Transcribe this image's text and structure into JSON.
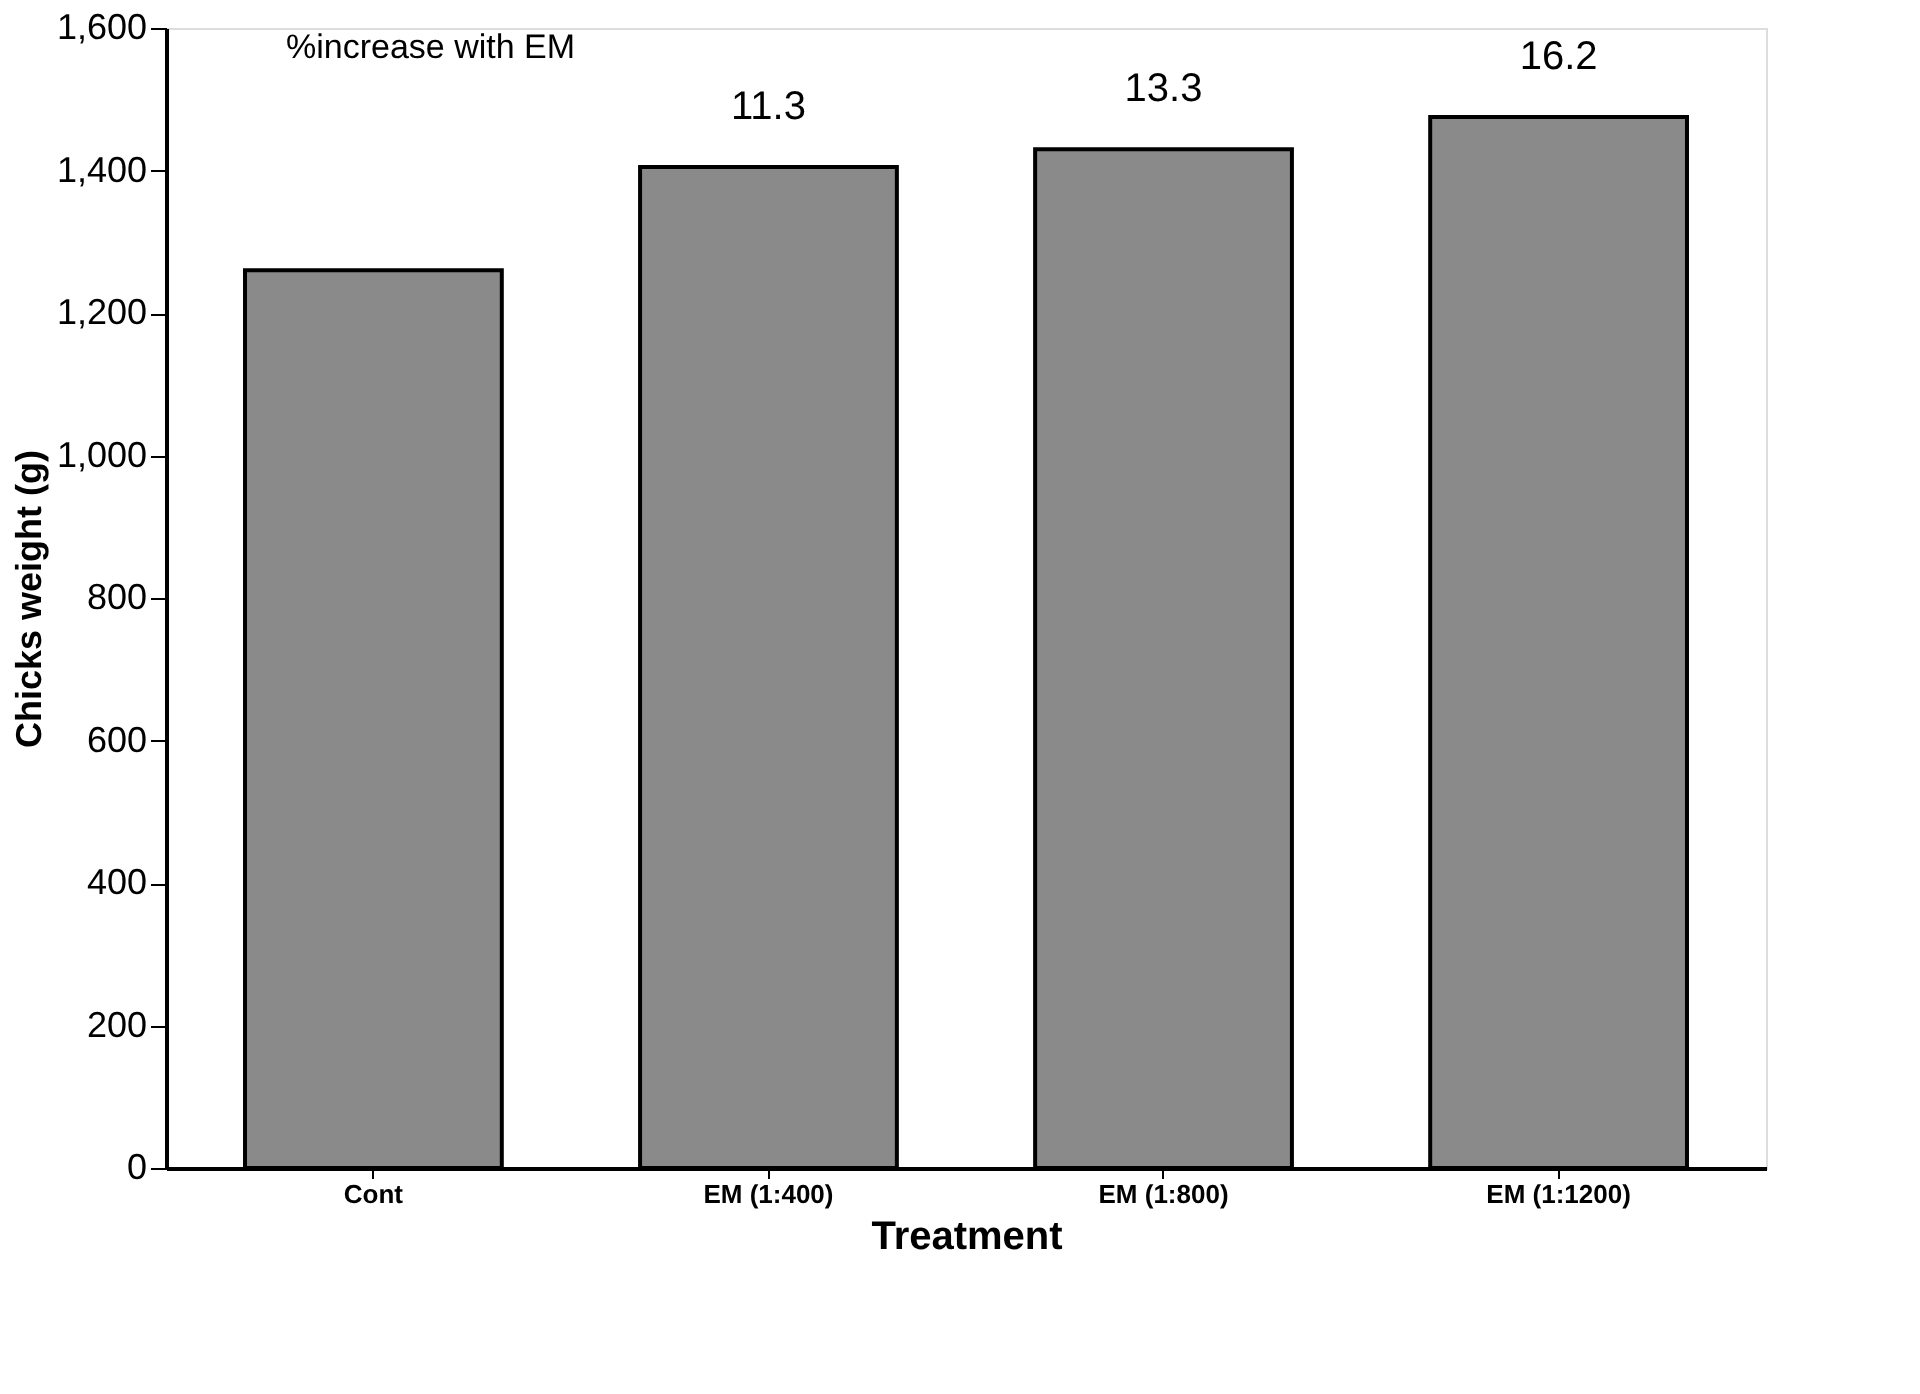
{
  "chart_data": {
    "type": "bar",
    "xlabel": "Treatment",
    "ylabel": "Chicks weight (g)",
    "categories": [
      "Cont",
      "EM (1:400)",
      "EM (1:800)",
      "EM (1:1200)"
    ],
    "values": [
      1260,
      1405,
      1430,
      1475
    ],
    "color": "#8a8a8a",
    "ylim": [
      0,
      1600
    ],
    "yticks": [
      0,
      {
        "value": 200,
        "label": "200"
      },
      {
        "value": 400,
        "label": "400"
      },
      {
        "value": 600,
        "label": "600"
      },
      {
        "value": 800,
        "label": "800"
      },
      {
        "value": 1000,
        "label": "1,000"
      },
      {
        "value": 1200,
        "label": "1,200"
      },
      {
        "value": 1400,
        "label": "1,400"
      },
      {
        "value": 1600,
        "label": "1,600"
      }
    ],
    "grid": false,
    "annotations": [
      "%increase with EM",
      "11.3",
      "13.3",
      "16.2"
    ]
  }
}
